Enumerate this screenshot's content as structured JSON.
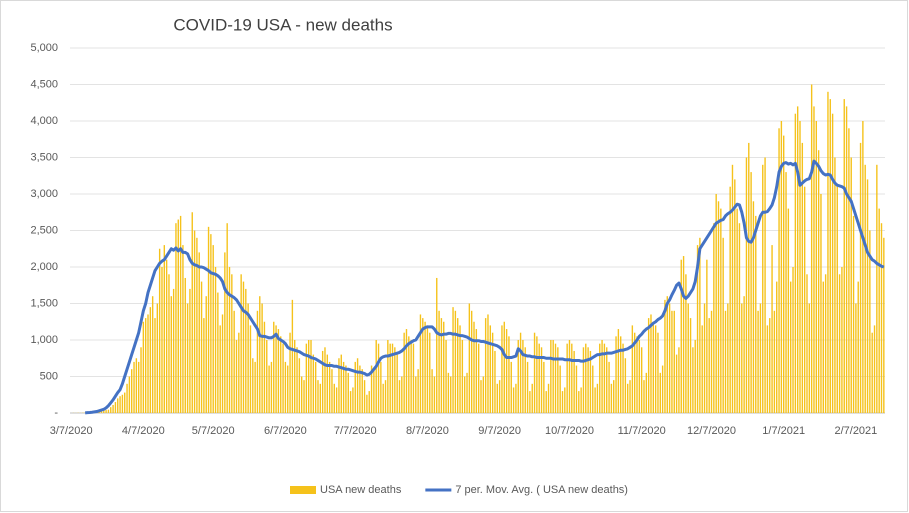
{
  "chart_data": {
    "type": "bar",
    "title": "COVID-19 USA - new deaths",
    "categories": [
      "3/7/2020",
      null,
      null,
      null,
      null,
      null,
      null,
      null,
      null,
      null,
      null,
      null,
      null,
      null,
      null,
      null,
      null,
      null,
      null,
      null,
      null,
      null,
      null,
      null,
      null,
      null,
      null,
      null,
      null,
      null,
      null,
      "4/7/2020",
      null,
      null,
      null,
      null,
      null,
      null,
      null,
      null,
      null,
      null,
      null,
      null,
      null,
      null,
      null,
      null,
      null,
      null,
      null,
      null,
      null,
      null,
      null,
      null,
      null,
      null,
      null,
      null,
      null,
      "5/7/2020",
      null,
      null,
      null,
      null,
      null,
      null,
      null,
      null,
      null,
      null,
      null,
      null,
      null,
      null,
      null,
      null,
      null,
      null,
      null,
      null,
      null,
      null,
      null,
      null,
      null,
      null,
      null,
      null,
      null,
      null,
      "6/7/2020",
      null,
      null,
      null,
      null,
      null,
      null,
      null,
      null,
      null,
      null,
      null,
      null,
      null,
      null,
      null,
      null,
      null,
      null,
      null,
      null,
      null,
      null,
      null,
      null,
      null,
      null,
      null,
      null,
      null,
      "7/7/2020",
      null,
      null,
      null,
      null,
      null,
      null,
      null,
      null,
      null,
      null,
      null,
      null,
      null,
      null,
      null,
      null,
      null,
      null,
      null,
      null,
      null,
      null,
      null,
      null,
      null,
      null,
      null,
      null,
      null,
      null,
      "8/7/2020",
      null,
      null,
      null,
      null,
      null,
      null,
      null,
      null,
      null,
      null,
      null,
      null,
      null,
      null,
      null,
      null,
      null,
      null,
      null,
      null,
      null,
      null,
      null,
      null,
      null,
      null,
      null,
      null,
      null,
      null,
      "9/7/2020",
      null,
      null,
      null,
      null,
      null,
      null,
      null,
      null,
      null,
      null,
      null,
      null,
      null,
      null,
      null,
      null,
      null,
      null,
      null,
      null,
      null,
      null,
      null,
      null,
      null,
      null,
      null,
      null,
      null,
      "10/7/2020",
      null,
      null,
      null,
      null,
      null,
      null,
      null,
      null,
      null,
      null,
      null,
      null,
      null,
      null,
      null,
      null,
      null,
      null,
      null,
      null,
      null,
      null,
      null,
      null,
      null,
      null,
      null,
      null,
      null,
      null,
      "11/7/2020",
      null,
      null,
      null,
      null,
      null,
      null,
      null,
      null,
      null,
      null,
      null,
      null,
      null,
      null,
      null,
      null,
      null,
      null,
      null,
      null,
      null,
      null,
      null,
      null,
      null,
      null,
      null,
      null,
      null,
      "12/7/2020",
      null,
      null,
      null,
      null,
      null,
      null,
      null,
      null,
      null,
      null,
      null,
      null,
      null,
      null,
      null,
      null,
      null,
      null,
      null,
      null,
      null,
      null,
      null,
      null,
      null,
      null,
      null,
      null,
      null,
      null,
      "1/7/2021",
      null,
      null,
      null,
      null,
      null,
      null,
      null,
      null,
      null,
      null,
      null,
      null,
      null,
      null,
      null,
      null,
      null,
      null,
      null,
      null,
      null,
      null,
      null,
      null,
      null,
      null,
      null,
      null,
      null,
      null,
      "2/7/2021",
      null,
      null,
      null,
      null,
      null,
      null,
      null,
      null,
      null,
      null,
      null,
      null
    ],
    "series": [
      {
        "name": "USA new deaths",
        "color": "#f5c21b",
        "type": "bar",
        "values": [
          0,
          2,
          1,
          3,
          2,
          4,
          5,
          5,
          6,
          4,
          9,
          12,
          20,
          25,
          30,
          40,
          45,
          80,
          110,
          150,
          200,
          230,
          250,
          280,
          400,
          500,
          600,
          700,
          750,
          700,
          900,
          1250,
          1300,
          1350,
          1450,
          1600,
          1300,
          1500,
          2250,
          2000,
          2300,
          2100,
          1900,
          1600,
          1700,
          2600,
          2650,
          2700,
          2300,
          1850,
          1500,
          1700,
          2750,
          2500,
          2400,
          2200,
          1800,
          1300,
          1600,
          2550,
          2450,
          2300,
          2000,
          1650,
          1200,
          1350,
          2200,
          2600,
          2000,
          1900,
          1400,
          1000,
          1100,
          1900,
          1800,
          1700,
          1500,
          1200,
          750,
          700,
          1400,
          1600,
          1500,
          1250,
          1000,
          650,
          700,
          1250,
          1200,
          1150,
          1050,
          950,
          700,
          650,
          1100,
          1550,
          1000,
          900,
          750,
          500,
          450,
          950,
          1000,
          1000,
          800,
          700,
          450,
          400,
          850,
          900,
          800,
          700,
          600,
          400,
          350,
          750,
          800,
          700,
          650,
          550,
          300,
          350,
          700,
          750,
          650,
          600,
          450,
          250,
          300,
          650,
          600,
          1000,
          950,
          700,
          400,
          450,
          1000,
          950,
          950,
          900,
          800,
          450,
          500,
          1100,
          1150,
          1050,
          1000,
          950,
          500,
          600,
          1350,
          1300,
          1250,
          1200,
          1100,
          600,
          500,
          1850,
          1400,
          1300,
          1250,
          1000,
          550,
          500,
          1450,
          1400,
          1300,
          1200,
          1000,
          500,
          550,
          1500,
          1400,
          1250,
          1150,
          950,
          450,
          500,
          1300,
          1350,
          1200,
          1100,
          850,
          400,
          450,
          1200,
          1250,
          1150,
          1050,
          700,
          350,
          400,
          1000,
          1100,
          1000,
          900,
          700,
          300,
          400,
          1100,
          1050,
          950,
          900,
          700,
          300,
          400,
          1000,
          1000,
          950,
          900,
          650,
          300,
          350,
          950,
          1000,
          950,
          850,
          650,
          300,
          350,
          900,
          950,
          900,
          850,
          650,
          350,
          400,
          950,
          1000,
          950,
          900,
          700,
          400,
          450,
          1050,
          1150,
          1050,
          950,
          750,
          400,
          450,
          1200,
          1100,
          1050,
          1000,
          900,
          450,
          550,
          1300,
          1350,
          1250,
          1200,
          1100,
          550,
          650,
          1550,
          1600,
          1500,
          1400,
          1400,
          800,
          900,
          2100,
          2150,
          1900,
          1500,
          1300,
          900,
          1000,
          2300,
          2400,
          1200,
          1500,
          2100,
          1300,
          1400,
          2600,
          3000,
          2900,
          2800,
          2400,
          1400,
          1500,
          3100,
          3400,
          3200,
          2800,
          2600,
          1500,
          1600,
          3500,
          3700,
          3300,
          2900,
          2700,
          1400,
          1500,
          3400,
          3500,
          1200,
          1300,
          2300,
          1400,
          1800,
          3900,
          4000,
          3800,
          3300,
          2800,
          1800,
          2000,
          4100,
          4200,
          4000,
          3700,
          3100,
          1900,
          1500,
          4500,
          4200,
          4000,
          3600,
          3000,
          1800,
          1900,
          4400,
          4300,
          4100,
          3500,
          3100,
          1900,
          2000,
          4300,
          4200,
          3900,
          3500,
          2700,
          1500,
          1800,
          3700,
          4000,
          3400,
          3200,
          2500,
          1100,
          1200,
          3400,
          2800,
          2600,
          2400
        ]
      },
      {
        "name": "7 per. Mov. Avg. ( USA new deaths)",
        "color": "#4472c4",
        "type": "line",
        "values": [
          null,
          null,
          null,
          null,
          null,
          null,
          2,
          5,
          7,
          10,
          15,
          20,
          30,
          40,
          50,
          70,
          100,
          140,
          180,
          230,
          280,
          320,
          400,
          500,
          600,
          700,
          800,
          900,
          1000,
          1100,
          1250,
          1400,
          1500,
          1650,
          1750,
          1850,
          1950,
          2000,
          2050,
          2080,
          2100,
          2150,
          2200,
          2250,
          2230,
          2260,
          2220,
          2250,
          2200,
          2200,
          2180,
          2100,
          2050,
          2030,
          2020,
          2000,
          2000,
          1990,
          1970,
          1950,
          1920,
          1910,
          1900,
          1880,
          1850,
          1800,
          1700,
          1650,
          1620,
          1600,
          1580,
          1550,
          1500,
          1450,
          1400,
          1380,
          1350,
          1300,
          1250,
          1200,
          1150,
          1060,
          1050,
          1050,
          1040,
          1030,
          1030,
          1050,
          1080,
          1020,
          1000,
          980,
          950,
          900,
          880,
          870,
          860,
          850,
          840,
          820,
          800,
          790,
          780,
          760,
          750,
          740,
          720,
          700,
          680,
          660,
          650,
          650,
          650,
          640,
          640,
          630,
          620,
          610,
          600,
          600,
          590,
          580,
          570,
          560,
          560,
          550,
          540,
          520,
          530,
          560,
          600,
          640,
          700,
          750,
          770,
          780,
          780,
          790,
          800,
          810,
          820,
          830,
          850,
          880,
          920,
          950,
          970,
          990,
          1000,
          1050,
          1100,
          1150,
          1170,
          1180,
          1180,
          1180,
          1150,
          1100,
          1080,
          1070,
          1080,
          1080,
          1090,
          1090,
          1080,
          1080,
          1070,
          1060,
          1060,
          1050,
          1040,
          1020,
          1000,
          990,
          990,
          990,
          980,
          980,
          970,
          960,
          950,
          940,
          930,
          920,
          900,
          870,
          800,
          760,
          760,
          760,
          770,
          780,
          880,
          850,
          800,
          790,
          780,
          780,
          770,
          770,
          760,
          760,
          760,
          760,
          750,
          750,
          750,
          740,
          740,
          740,
          740,
          740,
          730,
          730,
          730,
          720,
          720,
          720,
          720,
          710,
          710,
          720,
          730,
          740,
          760,
          780,
          800,
          800,
          810,
          810,
          820,
          820,
          820,
          830,
          840,
          850,
          860,
          860,
          870,
          880,
          900,
          920,
          960,
          1000,
          1050,
          1080,
          1120,
          1150,
          1170,
          1200,
          1230,
          1250,
          1280,
          1300,
          1330,
          1400,
          1500,
          1550,
          1620,
          1680,
          1750,
          1780,
          1700,
          1600,
          1570,
          1600,
          1650,
          1700,
          1800,
          2000,
          2250,
          2300,
          2350,
          2400,
          2450,
          2500,
          2550,
          2600,
          2620,
          2640,
          2650,
          2700,
          2730,
          2750,
          2780,
          2820,
          2860,
          2850,
          2750,
          2600,
          2400,
          2350,
          2340,
          2400,
          2500,
          2600,
          2700,
          2750,
          2750,
          2760,
          2800,
          2850,
          2950,
          3100,
          3300,
          3380,
          3420,
          3430,
          3410,
          3420,
          3400,
          3420,
          3300,
          3120,
          3150,
          3180,
          3200,
          3210,
          3300,
          3450,
          3420,
          3380,
          3320,
          3280,
          3260,
          3270,
          3260,
          3200,
          3150,
          3120,
          3110,
          3100,
          3080,
          3000,
          2950,
          2900,
          2800,
          2700,
          2600,
          2500,
          2400,
          2300,
          2200,
          2150,
          2100,
          2080,
          2050,
          2030,
          2010,
          2000
        ]
      }
    ],
    "ylim": [
      0,
      5000
    ],
    "yticks": [
      {
        "value": 0,
        "label": "-"
      },
      500,
      {
        "value": 1000,
        "label": "1,000"
      },
      {
        "value": 1500,
        "label": "1,500"
      },
      {
        "value": 2000,
        "label": "2,000"
      },
      {
        "value": 2500,
        "label": "2,500"
      },
      {
        "value": 3000,
        "label": "3,000"
      },
      {
        "value": 3500,
        "label": "3,500"
      },
      {
        "value": 4000,
        "label": "4,000"
      },
      {
        "value": 4500,
        "label": "4,500"
      },
      {
        "value": 5000,
        "label": "5,000"
      }
    ],
    "grid": true,
    "legend": "bottom"
  }
}
